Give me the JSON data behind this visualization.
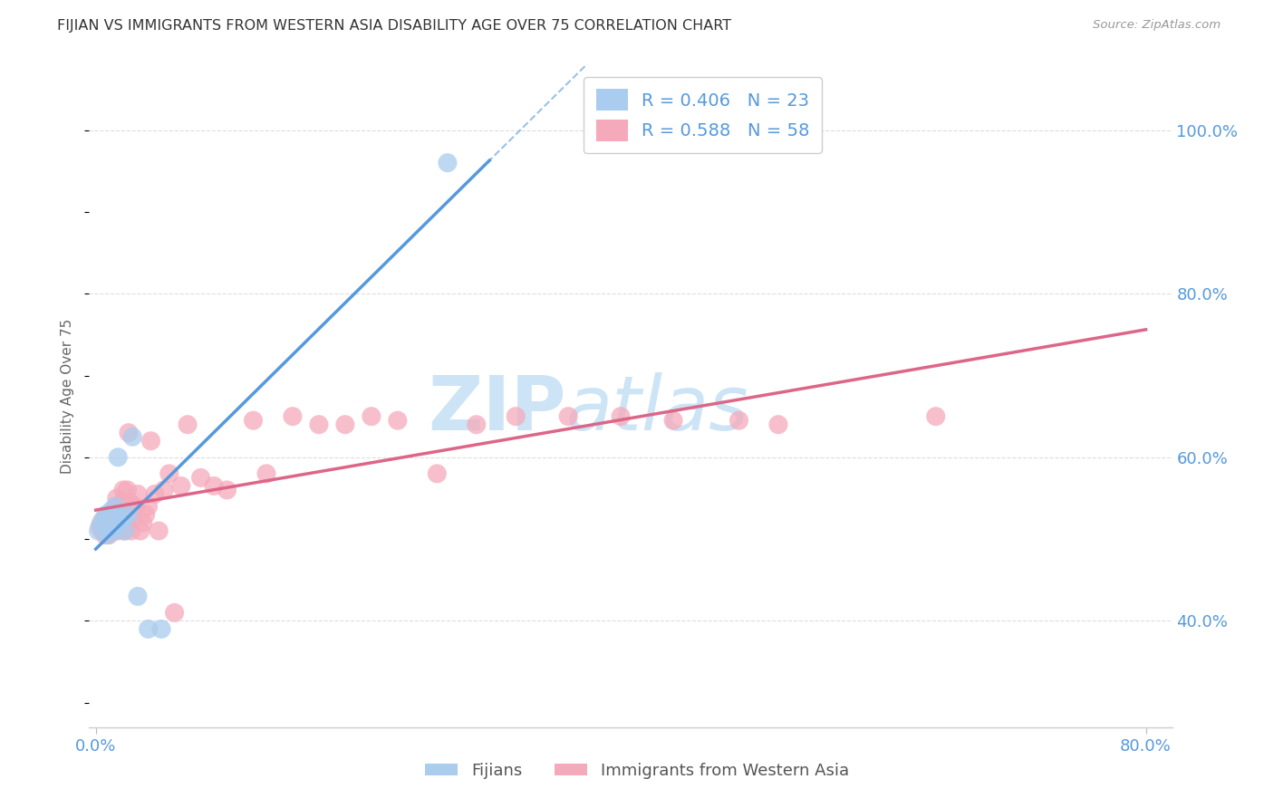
{
  "title": "FIJIAN VS IMMIGRANTS FROM WESTERN ASIA DISABILITY AGE OVER 75 CORRELATION CHART",
  "source": "Source: ZipAtlas.com",
  "ylabel": "Disability Age Over 75",
  "xlim": [
    -0.005,
    0.82
  ],
  "ylim": [
    0.27,
    1.08
  ],
  "x_ticks": [
    0.0,
    0.8
  ],
  "x_tick_labels": [
    "0.0%",
    "80.0%"
  ],
  "y_ticks": [
    0.4,
    0.6,
    0.8,
    1.0
  ],
  "y_tick_labels": [
    "40.0%",
    "60.0%",
    "80.0%",
    "100.0%"
  ],
  "fijian_color": "#aaccee",
  "western_asia_color": "#f5aabb",
  "fijian_line_color": "#5599dd",
  "western_asia_line_color": "#dd6688",
  "tick_color": "#5599dd",
  "R_fijian": 0.406,
  "N_fijian": 23,
  "R_western_asia": 0.588,
  "N_western_asia": 58,
  "fijian_x": [
    0.002,
    0.004,
    0.006,
    0.007,
    0.008,
    0.009,
    0.01,
    0.011,
    0.012,
    0.013,
    0.014,
    0.015,
    0.016,
    0.017,
    0.018,
    0.02,
    0.022,
    0.025,
    0.028,
    0.032,
    0.04,
    0.05,
    0.268
  ],
  "fijian_y": [
    0.51,
    0.52,
    0.515,
    0.525,
    0.53,
    0.505,
    0.515,
    0.52,
    0.535,
    0.525,
    0.51,
    0.54,
    0.515,
    0.6,
    0.52,
    0.525,
    0.51,
    0.53,
    0.625,
    0.43,
    0.39,
    0.39,
    0.96
  ],
  "western_asia_x": [
    0.003,
    0.005,
    0.006,
    0.007,
    0.008,
    0.009,
    0.01,
    0.011,
    0.012,
    0.013,
    0.014,
    0.015,
    0.016,
    0.017,
    0.018,
    0.019,
    0.02,
    0.021,
    0.022,
    0.023,
    0.024,
    0.025,
    0.026,
    0.027,
    0.028,
    0.03,
    0.032,
    0.034,
    0.036,
    0.038,
    0.04,
    0.042,
    0.045,
    0.048,
    0.052,
    0.056,
    0.06,
    0.065,
    0.07,
    0.08,
    0.09,
    0.1,
    0.12,
    0.13,
    0.15,
    0.17,
    0.19,
    0.21,
    0.23,
    0.26,
    0.29,
    0.32,
    0.36,
    0.4,
    0.44,
    0.49,
    0.52,
    0.64
  ],
  "western_asia_y": [
    0.515,
    0.51,
    0.525,
    0.505,
    0.515,
    0.52,
    0.505,
    0.525,
    0.53,
    0.51,
    0.525,
    0.54,
    0.55,
    0.51,
    0.52,
    0.53,
    0.545,
    0.56,
    0.51,
    0.52,
    0.56,
    0.63,
    0.545,
    0.51,
    0.525,
    0.54,
    0.555,
    0.51,
    0.52,
    0.53,
    0.54,
    0.62,
    0.555,
    0.51,
    0.56,
    0.58,
    0.41,
    0.565,
    0.64,
    0.575,
    0.565,
    0.56,
    0.645,
    0.58,
    0.65,
    0.64,
    0.64,
    0.65,
    0.645,
    0.58,
    0.64,
    0.65,
    0.65,
    0.65,
    0.645,
    0.645,
    0.64,
    0.65
  ],
  "fijian_line_x": [
    0.0,
    0.3
  ],
  "wa_line_x": [
    0.0,
    0.8
  ],
  "background_color": "#ffffff",
  "grid_color": "#dddddd",
  "watermark_zip": "ZIP",
  "watermark_atlas": "atlas",
  "watermark_color": "#cce4f5"
}
